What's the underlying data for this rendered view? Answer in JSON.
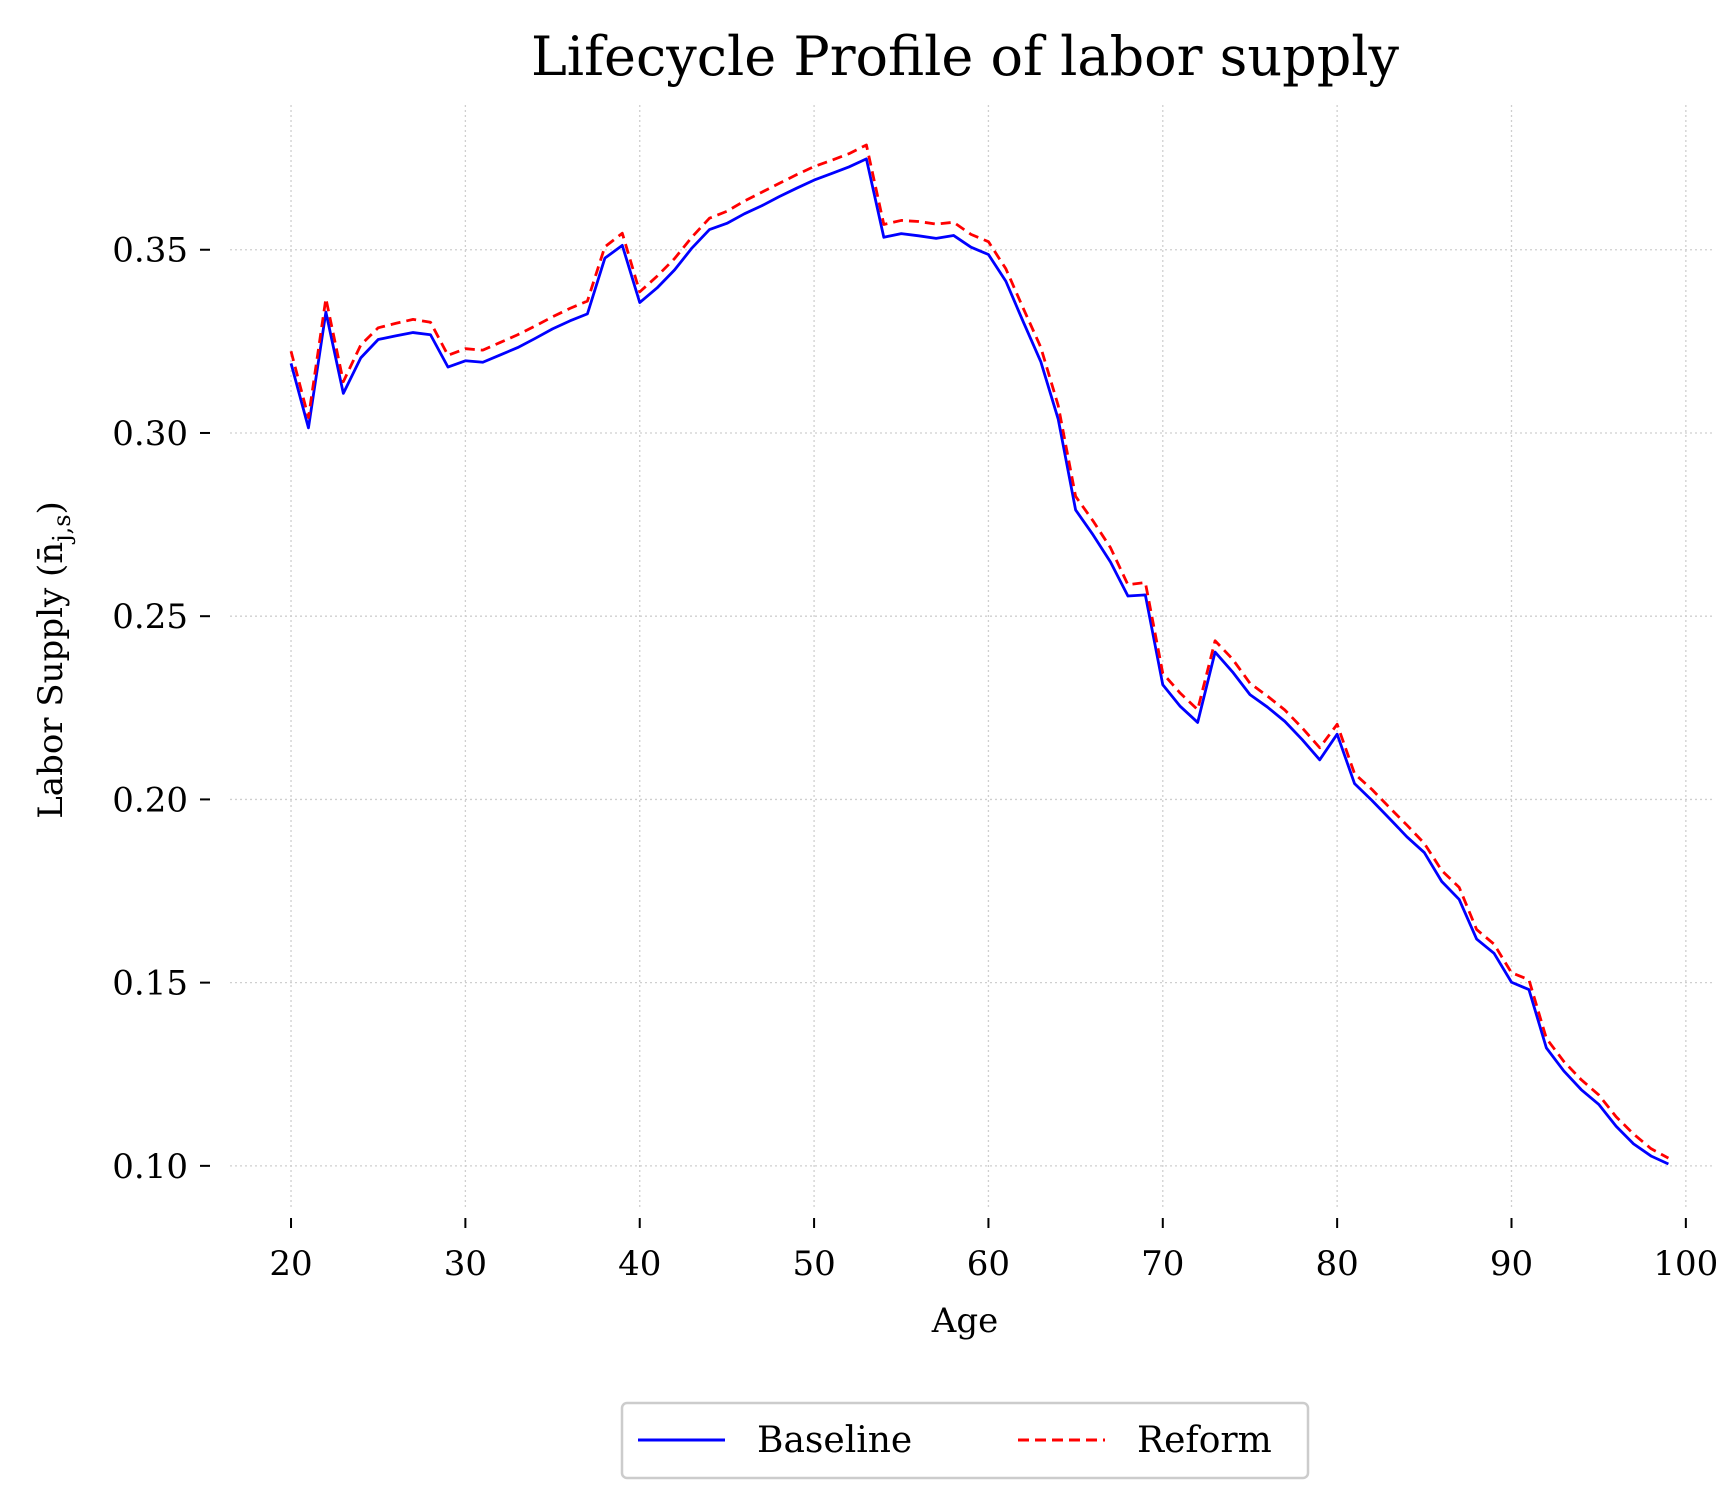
{
  "chart_data": {
    "type": "line",
    "title": "Lifecycle Profile of labor supply",
    "xlabel": "Age",
    "ylabel": "Labor Supply (n̄",
    "ylabel_sub": "j,s",
    "ylabel_close": ")",
    "xlim": [
      16.5,
      101.5
    ],
    "ylim": [
      0.0885,
      0.3895
    ],
    "xticks": [
      20,
      30,
      40,
      50,
      60,
      70,
      80,
      90,
      100
    ],
    "xtick_labels": [
      "20",
      "30",
      "40",
      "50",
      "60",
      "70",
      "80",
      "90",
      "100"
    ],
    "yticks": [
      0.1,
      0.15,
      0.2,
      0.25,
      0.3,
      0.35
    ],
    "ytick_labels": [
      "0.10",
      "0.15",
      "0.20",
      "0.25",
      "0.30",
      "0.35"
    ],
    "grid": true,
    "legend_position": "bottom-center",
    "x": [
      20,
      21,
      22,
      23,
      24,
      25,
      26,
      27,
      28,
      29,
      30,
      31,
      32,
      33,
      34,
      35,
      36,
      37,
      38,
      39,
      40,
      41,
      42,
      43,
      44,
      45,
      46,
      47,
      48,
      49,
      50,
      51,
      52,
      53,
      54,
      55,
      56,
      57,
      58,
      59,
      60,
      61,
      62,
      63,
      64,
      65,
      66,
      67,
      68,
      69,
      70,
      71,
      72,
      73,
      74,
      75,
      76,
      77,
      78,
      79,
      80,
      81,
      82,
      83,
      84,
      85,
      86,
      87,
      88,
      89,
      90,
      91,
      92,
      93,
      94,
      95,
      96,
      97,
      98,
      99
    ],
    "series": [
      {
        "name": "Baseline",
        "color": "#0000ff",
        "style": "solid",
        "values": [
          0.319,
          0.3014,
          0.333,
          0.3108,
          0.3205,
          0.3255,
          0.3265,
          0.3274,
          0.3268,
          0.318,
          0.3197,
          0.3193,
          0.3213,
          0.3233,
          0.3258,
          0.3284,
          0.3306,
          0.3325,
          0.3477,
          0.3512,
          0.3356,
          0.3396,
          0.3445,
          0.3505,
          0.3555,
          0.3572,
          0.3598,
          0.362,
          0.3645,
          0.3668,
          0.369,
          0.3708,
          0.3726,
          0.3748,
          0.3534,
          0.3544,
          0.3538,
          0.3531,
          0.3539,
          0.3507,
          0.3487,
          0.3414,
          0.3303,
          0.3195,
          0.3038,
          0.279,
          0.2722,
          0.2648,
          0.2555,
          0.2558,
          0.2313,
          0.2254,
          0.221,
          0.2402,
          0.2348,
          0.2286,
          0.2252,
          0.2213,
          0.2163,
          0.2108,
          0.2178,
          0.2043,
          0.1997,
          0.1948,
          0.1898,
          0.1855,
          0.1776,
          0.1727,
          0.1619,
          0.158,
          0.1501,
          0.1481,
          0.1322,
          0.1259,
          0.1208,
          0.1168,
          0.1108,
          0.106,
          0.1027,
          0.1005
        ]
      },
      {
        "name": "Reform",
        "color": "#ff0000",
        "style": "dashed",
        "values": [
          0.3223,
          0.3042,
          0.3367,
          0.314,
          0.324,
          0.3287,
          0.3299,
          0.331,
          0.3302,
          0.3212,
          0.323,
          0.3226,
          0.3247,
          0.3268,
          0.3292,
          0.3317,
          0.334,
          0.336,
          0.3508,
          0.3545,
          0.3385,
          0.3428,
          0.3476,
          0.3535,
          0.3586,
          0.3605,
          0.3633,
          0.3657,
          0.3681,
          0.3705,
          0.3727,
          0.3744,
          0.3762,
          0.3786,
          0.3569,
          0.358,
          0.3577,
          0.357,
          0.3575,
          0.3542,
          0.3522,
          0.3448,
          0.334,
          0.3234,
          0.3075,
          0.2827,
          0.276,
          0.2687,
          0.2586,
          0.2592,
          0.2344,
          0.229,
          0.2245,
          0.2433,
          0.2383,
          0.2317,
          0.2282,
          0.2244,
          0.2195,
          0.2141,
          0.2205,
          0.207,
          0.2027,
          0.1978,
          0.193,
          0.188,
          0.1806,
          0.176,
          0.1645,
          0.1605,
          0.1527,
          0.1508,
          0.1348,
          0.1285,
          0.1235,
          0.1194,
          0.1134,
          0.1087,
          0.1047,
          0.1021
        ]
      }
    ]
  }
}
